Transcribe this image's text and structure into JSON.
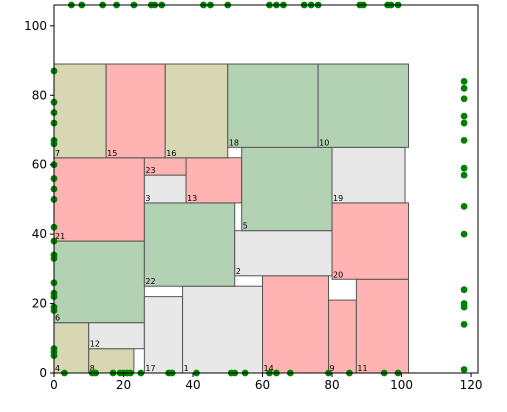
{
  "chart_data": {
    "type": "scatter",
    "title": "",
    "xlabel": "",
    "ylabel": "",
    "xlim": [
      0,
      122
    ],
    "ylim": [
      0,
      106
    ],
    "xticks": [
      0,
      20,
      40,
      60,
      80,
      100,
      120
    ],
    "yticks": [
      0,
      20,
      40,
      60,
      80,
      100
    ],
    "grid": false,
    "colors": {
      "green": "#b3d1b3",
      "olive": "#d7d7b3",
      "pink": "#ffb3b3",
      "gray": "#e8e8e8",
      "edge": "#555555",
      "point": "#008000"
    },
    "rectangles": [
      {
        "label": "4",
        "x0": 0,
        "y0": 0,
        "x1": 10,
        "y1": 14.5,
        "color": "olive"
      },
      {
        "label": "8",
        "x0": 10,
        "y0": 0,
        "x1": 23,
        "y1": 7,
        "color": "olive"
      },
      {
        "label": "12",
        "x0": 10,
        "y0": 7,
        "x1": 26,
        "y1": 14.5,
        "color": "gray"
      },
      {
        "label": "6",
        "x0": 0,
        "y0": 14.5,
        "x1": 26,
        "y1": 38,
        "color": "green"
      },
      {
        "label": "21",
        "x0": 0,
        "y0": 38,
        "x1": 26,
        "y1": 62,
        "color": "pink"
      },
      {
        "label": "17",
        "x0": 26,
        "y0": 0,
        "x1": 37,
        "y1": 22,
        "color": "gray"
      },
      {
        "label": "1",
        "x0": 37,
        "y0": 0,
        "x1": 60,
        "y1": 25,
        "color": "gray"
      },
      {
        "label": "14",
        "x0": 60,
        "y0": 0,
        "x1": 79,
        "y1": 28,
        "color": "pink"
      },
      {
        "label": "9",
        "x0": 79,
        "y0": 0,
        "x1": 87,
        "y1": 21,
        "color": "pink"
      },
      {
        "label": "11",
        "x0": 87,
        "y0": 0,
        "x1": 102,
        "y1": 27,
        "color": "pink"
      },
      {
        "label": "22",
        "x0": 26,
        "y0": 25,
        "x1": 52,
        "y1": 49,
        "color": "green"
      },
      {
        "label": "2",
        "x0": 52,
        "y0": 28,
        "x1": 80,
        "y1": 41,
        "color": "gray"
      },
      {
        "label": "20",
        "x0": 80,
        "y0": 27,
        "x1": 102,
        "y1": 49,
        "color": "pink"
      },
      {
        "label": "3",
        "x0": 26,
        "y0": 49,
        "x1": 38,
        "y1": 57,
        "color": "gray"
      },
      {
        "label": "13",
        "x0": 38,
        "y0": 49,
        "x1": 54,
        "y1": 62,
        "color": "pink"
      },
      {
        "label": "23",
        "x0": 26,
        "y0": 57,
        "x1": 38,
        "y1": 62,
        "color": "pink"
      },
      {
        "label": "5",
        "x0": 54,
        "y0": 41,
        "x1": 80,
        "y1": 65,
        "color": "green"
      },
      {
        "label": "19",
        "x0": 80,
        "y0": 49,
        "x1": 101,
        "y1": 65,
        "color": "gray"
      },
      {
        "label": "7",
        "x0": 0,
        "y0": 62,
        "x1": 15,
        "y1": 89,
        "color": "olive"
      },
      {
        "label": "15",
        "x0": 15,
        "y0": 62,
        "x1": 32,
        "y1": 89,
        "color": "pink"
      },
      {
        "label": "16",
        "x0": 32,
        "y0": 62,
        "x1": 50,
        "y1": 89,
        "color": "olive"
      },
      {
        "label": "18",
        "x0": 50,
        "y0": 65,
        "x1": 76,
        "y1": 89,
        "color": "green"
      },
      {
        "label": "10",
        "x0": 76,
        "y0": 65,
        "x1": 102,
        "y1": 89,
        "color": "green"
      }
    ],
    "points": [
      [
        5,
        106
      ],
      [
        8,
        106
      ],
      [
        14,
        106
      ],
      [
        18,
        106
      ],
      [
        23,
        106
      ],
      [
        28,
        106
      ],
      [
        29,
        106
      ],
      [
        31,
        106
      ],
      [
        43,
        106
      ],
      [
        45,
        106
      ],
      [
        50,
        106
      ],
      [
        62,
        106
      ],
      [
        64,
        106
      ],
      [
        66,
        106
      ],
      [
        72,
        106
      ],
      [
        74,
        106
      ],
      [
        76,
        106
      ],
      [
        88,
        106
      ],
      [
        89,
        106
      ],
      [
        96,
        106
      ],
      [
        97,
        106
      ],
      [
        99,
        106
      ],
      [
        0,
        87
      ],
      [
        0,
        78
      ],
      [
        0,
        75
      ],
      [
        0,
        72
      ],
      [
        0,
        67
      ],
      [
        0,
        66
      ],
      [
        0,
        60
      ],
      [
        0,
        56
      ],
      [
        0,
        53
      ],
      [
        0,
        50
      ],
      [
        0,
        42
      ],
      [
        0,
        38
      ],
      [
        0,
        34
      ],
      [
        0,
        33
      ],
      [
        0,
        26
      ],
      [
        0,
        23
      ],
      [
        0,
        22
      ],
      [
        0,
        19
      ],
      [
        0,
        18
      ],
      [
        0,
        7
      ],
      [
        0,
        6
      ],
      [
        0,
        5
      ],
      [
        3,
        0
      ],
      [
        11,
        0
      ],
      [
        12,
        0
      ],
      [
        17,
        0
      ],
      [
        19,
        0
      ],
      [
        20,
        0
      ],
      [
        21,
        0
      ],
      [
        22,
        0
      ],
      [
        25,
        0
      ],
      [
        33,
        0
      ],
      [
        34,
        0
      ],
      [
        41,
        0
      ],
      [
        51,
        0
      ],
      [
        52,
        0
      ],
      [
        55,
        0
      ],
      [
        62,
        0
      ],
      [
        64,
        0
      ],
      [
        68,
        0
      ],
      [
        79,
        0
      ],
      [
        85,
        0
      ],
      [
        95,
        0
      ],
      [
        99,
        0
      ],
      [
        118,
        84
      ],
      [
        118,
        82
      ],
      [
        118,
        79
      ],
      [
        118,
        74
      ],
      [
        118,
        72
      ],
      [
        118,
        67
      ],
      [
        118,
        59
      ],
      [
        118,
        57
      ],
      [
        118,
        48
      ],
      [
        118,
        40
      ],
      [
        118,
        24
      ],
      [
        118,
        20
      ],
      [
        118,
        19
      ],
      [
        118,
        14
      ],
      [
        118,
        1
      ]
    ]
  }
}
